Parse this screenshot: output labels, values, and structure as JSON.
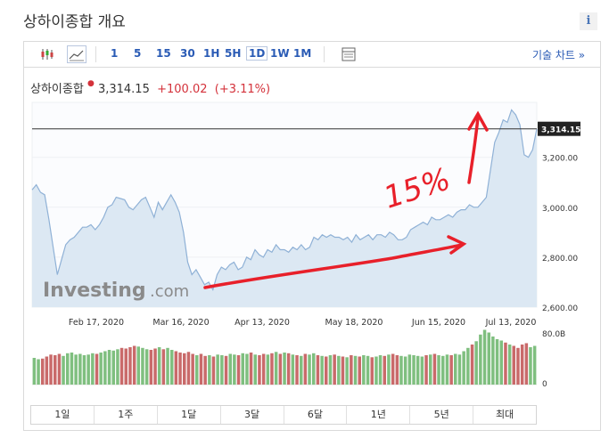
{
  "header": {
    "title": "상하이종합  개요"
  },
  "toolbar": {
    "intervals": [
      "1",
      "5",
      "15",
      "30",
      "1H",
      "5H",
      "1D",
      "1W",
      "1M"
    ],
    "selected_interval": "1D",
    "tech_chart_label": "기술 차트 »"
  },
  "quote": {
    "name": "상하이종합",
    "price": "3,314.15",
    "change": "+100.02",
    "change_pct": "(+3.11%)"
  },
  "chart_data": {
    "type": "area",
    "x_ticks": [
      "Feb 17, 2020",
      "Mar 16, 2020",
      "Apr 13, 2020",
      "May 18, 2020",
      "Jun 15, 2020",
      "Jul 13, 2020"
    ],
    "y_ticks": [
      "3,200.00",
      "3,000.00",
      "2,800.00",
      "2,600.00"
    ],
    "ylim": [
      2600,
      3420
    ],
    "last_price_label": "3,314.15",
    "last_price": 3314.15,
    "values": [
      3070,
      3090,
      3060,
      3050,
      2950,
      2840,
      2730,
      2790,
      2850,
      2870,
      2880,
      2900,
      2920,
      2920,
      2930,
      2910,
      2930,
      2960,
      3000,
      3010,
      3040,
      3035,
      3030,
      3000,
      2990,
      3010,
      3030,
      3040,
      3000,
      2960,
      3020,
      2990,
      3020,
      3050,
      3020,
      2980,
      2900,
      2780,
      2730,
      2750,
      2720,
      2690,
      2700,
      2670,
      2730,
      2760,
      2750,
      2770,
      2780,
      2750,
      2760,
      2800,
      2790,
      2830,
      2810,
      2800,
      2830,
      2820,
      2850,
      2830,
      2830,
      2820,
      2840,
      2830,
      2850,
      2830,
      2840,
      2880,
      2870,
      2890,
      2880,
      2890,
      2880,
      2880,
      2870,
      2880,
      2860,
      2890,
      2870,
      2880,
      2890,
      2870,
      2890,
      2890,
      2880,
      2900,
      2890,
      2870,
      2870,
      2880,
      2910,
      2920,
      2930,
      2940,
      2930,
      2960,
      2950,
      2950,
      2960,
      2970,
      2960,
      2980,
      2990,
      2990,
      3010,
      3000,
      3000,
      3020,
      3040,
      3150,
      3260,
      3300,
      3350,
      3340,
      3390,
      3370,
      3330,
      3210,
      3200,
      3230,
      3314
    ],
    "volume": [
      40,
      38,
      39,
      42,
      45,
      44,
      46,
      43,
      47,
      48,
      45,
      46,
      44,
      45,
      47,
      46,
      48,
      50,
      52,
      51,
      53,
      55,
      54,
      56,
      58,
      57,
      55,
      53,
      52,
      54,
      56,
      53,
      55,
      52,
      50,
      48,
      47,
      49,
      46,
      44,
      46,
      43,
      44,
      42,
      45,
      44,
      43,
      46,
      45,
      44,
      47,
      46,
      48,
      45,
      44,
      46,
      45,
      47,
      49,
      46,
      48,
      47,
      45,
      44,
      43,
      46,
      45,
      47,
      44,
      43,
      42,
      44,
      45,
      43,
      42,
      41,
      44,
      43,
      42,
      44,
      43,
      41,
      42,
      44,
      43,
      45,
      46,
      44,
      43,
      42,
      45,
      44,
      43,
      42,
      44,
      45,
      46,
      44,
      43,
      45,
      44,
      46,
      45,
      50,
      55,
      60,
      65,
      75,
      82,
      78,
      72,
      68,
      66,
      63,
      60,
      58,
      55,
      60,
      62,
      56,
      58
    ],
    "volume_ylabels": [
      "80.0B",
      "0"
    ]
  },
  "ranges": [
    "1일",
    "1주",
    "1달",
    "3달",
    "6달",
    "1년",
    "5년",
    "최대"
  ],
  "watermark": {
    "brand": "Investing",
    "suffix": ".com"
  },
  "annotation": {
    "text": "15%"
  },
  "colors": {
    "accent": "#2a5bb5",
    "down": "#d4323b",
    "area_fill": "#dce8f3",
    "area_line": "#8fb1d6",
    "vol_up": "#7fbf7f",
    "vol_down": "#c96a6a"
  }
}
